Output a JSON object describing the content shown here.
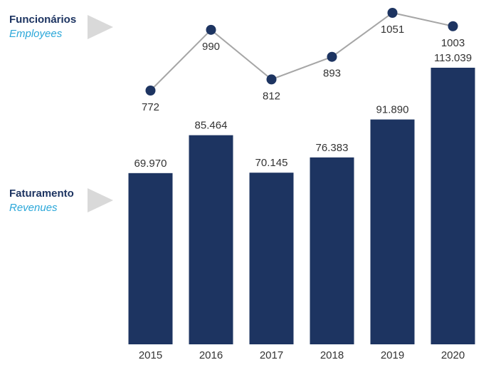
{
  "legend": {
    "employees_pt": "Funcionários",
    "employees_en": "Employees",
    "revenues_pt": "Faturamento",
    "revenues_en": "Revenues"
  },
  "colors": {
    "bar": "#1d3461",
    "line": "#a6a6a6",
    "marker": "#1d3461",
    "accent": "#2aa7d9",
    "arrow": "#d9d9d9"
  },
  "chart_data": [
    {
      "type": "bar",
      "categories": [
        "2015",
        "2016",
        "2017",
        "2018",
        "2019",
        "2020"
      ],
      "values": [
        69970,
        85464,
        70145,
        76383,
        91890,
        113039
      ],
      "value_labels": [
        "69.970",
        "85.464",
        "70.145",
        "76.383",
        "91.890",
        "113.039"
      ],
      "ylim": [
        0,
        113039
      ],
      "grid": false
    },
    {
      "type": "line",
      "categories": [
        "2015",
        "2016",
        "2017",
        "2018",
        "2019",
        "2020"
      ],
      "values": [
        772,
        990,
        812,
        893,
        1051,
        1003
      ],
      "value_labels": [
        "772",
        "990",
        "812",
        "893",
        "1051",
        "1003"
      ],
      "ylim": [
        772,
        1051
      ],
      "grid": false
    }
  ]
}
